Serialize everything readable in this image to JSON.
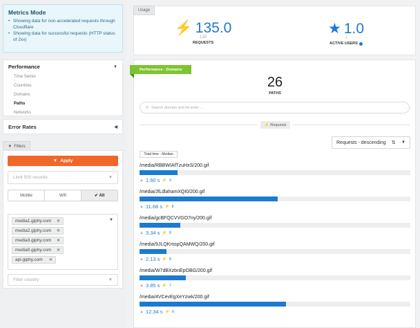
{
  "metrics": {
    "title": "Metrics Mode",
    "notes": [
      "Showing data for non-accelerated requests through Cloudflare",
      "Showing data for successful requests (HTTP status of 2xx)"
    ]
  },
  "nav": {
    "performance_label": "Performance",
    "items": [
      "Time Series",
      "Countries",
      "Domains",
      "Paths",
      "Networks"
    ],
    "active": "Paths",
    "error_rates_label": "Error Rates"
  },
  "filters": {
    "tab_label": "Filters",
    "apply_label": "Apply",
    "limit_placeholder": "Limit 500 records",
    "segments": [
      "Mobile",
      "Wifi",
      "All"
    ],
    "selected_segment": "All",
    "hosts": [
      "media1.giphy.com",
      "media2.giphy.com",
      "media3.giphy.com",
      "media0.giphy.com",
      "api.giphy.com"
    ],
    "country_placeholder": "Filter country"
  },
  "usage": {
    "tab_label": "Usage",
    "requests_value": "135.0",
    "requests_sub": "135",
    "requests_label": "REQUESTS",
    "users_value": "1.0",
    "users_sub": "1",
    "users_label": "ACTIVE USERS"
  },
  "performance": {
    "ribbon_label": "Performance - Domains",
    "paths_count": "26",
    "paths_label": "PATHS",
    "search_placeholder": "Search domain and hit enter ...",
    "requests_pill": "Requests",
    "sort_label": "Requests - descending",
    "median_badge": "Total time - Median",
    "rows": [
      {
        "path": "/media/RBBWIAfTzuHxS/200.gif",
        "time": "1.60 s",
        "count": "9",
        "fill": 0.14
      },
      {
        "path": "/media/JfLdlahamXQI0/200.gif",
        "time": "11.68 s",
        "count": "8",
        "fill": 0.51
      },
      {
        "path": "/media/gcBFQCVVGO7ny/200.gif",
        "time": "3.34 s",
        "count": "8",
        "fill": 0.15
      },
      {
        "path": "/media/9JLQKmspQAMWQ/200.gif",
        "time": "2.13 s",
        "count": "8",
        "fill": 0.1
      },
      {
        "path": "/media/W7dBXzbnEpOBG/200.gif",
        "time": "3.85 s",
        "count": "7",
        "fill": 0.17
      },
      {
        "path": "/media/4VCevEgXeYzwk/200.gif",
        "time": "12.34 s",
        "count": "6",
        "fill": 0.54
      }
    ]
  },
  "colors": {
    "accent_blue": "#1c7ad0",
    "apply_orange": "#f1672a",
    "ribbon_green": "#7ec42f",
    "info_bg": "#e9f6fb"
  }
}
